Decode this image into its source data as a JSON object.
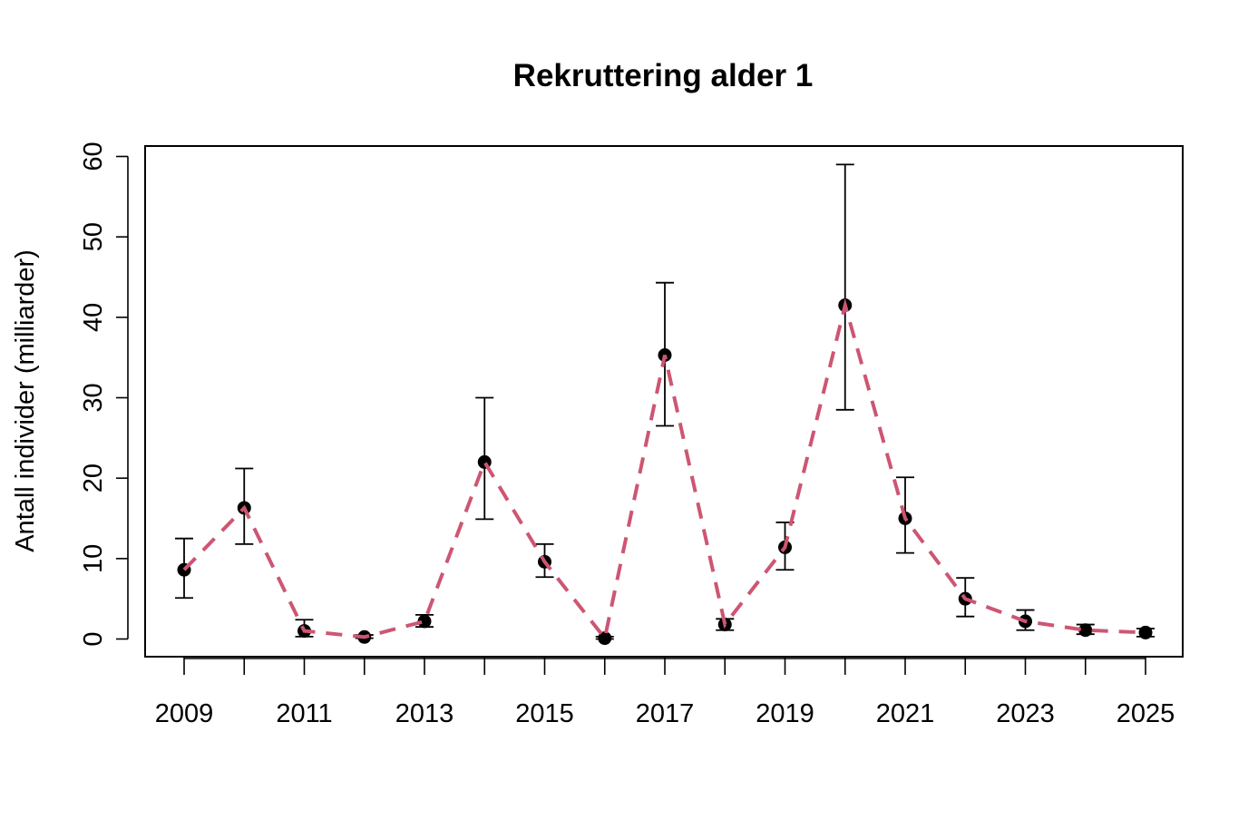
{
  "chart_data": {
    "type": "line",
    "title": "Rekruttering alder 1",
    "xlabel": "",
    "ylabel": "Antall individer (milliarder)",
    "xlim": [
      2008.15,
      2025.6
    ],
    "ylim": [
      -2.2,
      61.4
    ],
    "y_ticks": [
      0,
      10,
      20,
      30,
      40,
      50,
      60
    ],
    "x_ticks": [
      2009,
      2010,
      2011,
      2012,
      2013,
      2014,
      2015,
      2016,
      2017,
      2018,
      2019,
      2020,
      2021,
      2022,
      2023,
      2024,
      2025
    ],
    "x_tick_labels": [
      "2009",
      "",
      "2011",
      "",
      "2013",
      "",
      "2015",
      "",
      "2017",
      "",
      "2019",
      "",
      "2021",
      "",
      "2023",
      "",
      "2025"
    ],
    "grid": false,
    "legend": null,
    "x": [
      2009,
      2010,
      2011,
      2012,
      2013,
      2014,
      2015,
      2016,
      2017,
      2018,
      2019,
      2020,
      2021,
      2022,
      2023,
      2024,
      2025
    ],
    "series": [
      {
        "name": "Rekruttering alder 1",
        "style": "points with dashed line and error bars",
        "line_color": "#CD5672",
        "point_color": "#000000",
        "values": [
          8.6,
          16.3,
          1.0,
          0.25,
          2.2,
          22.0,
          9.6,
          0.1,
          35.3,
          1.8,
          11.4,
          41.5,
          15.0,
          5.0,
          2.2,
          1.1,
          0.8
        ],
        "upper": [
          12.5,
          21.2,
          2.4,
          0.5,
          3.0,
          30.0,
          11.8,
          0.3,
          44.3,
          2.5,
          14.5,
          59.0,
          20.1,
          7.6,
          3.6,
          1.8,
          1.3
        ],
        "lower": [
          5.1,
          11.8,
          0.3,
          0.1,
          1.5,
          14.9,
          7.7,
          0.0,
          26.5,
          1.1,
          8.6,
          28.5,
          10.7,
          2.8,
          1.1,
          0.6,
          0.3
        ]
      }
    ]
  },
  "labels": {
    "title": "Rekruttering alder 1",
    "ylabel": "Antall individer (milliarder)"
  }
}
